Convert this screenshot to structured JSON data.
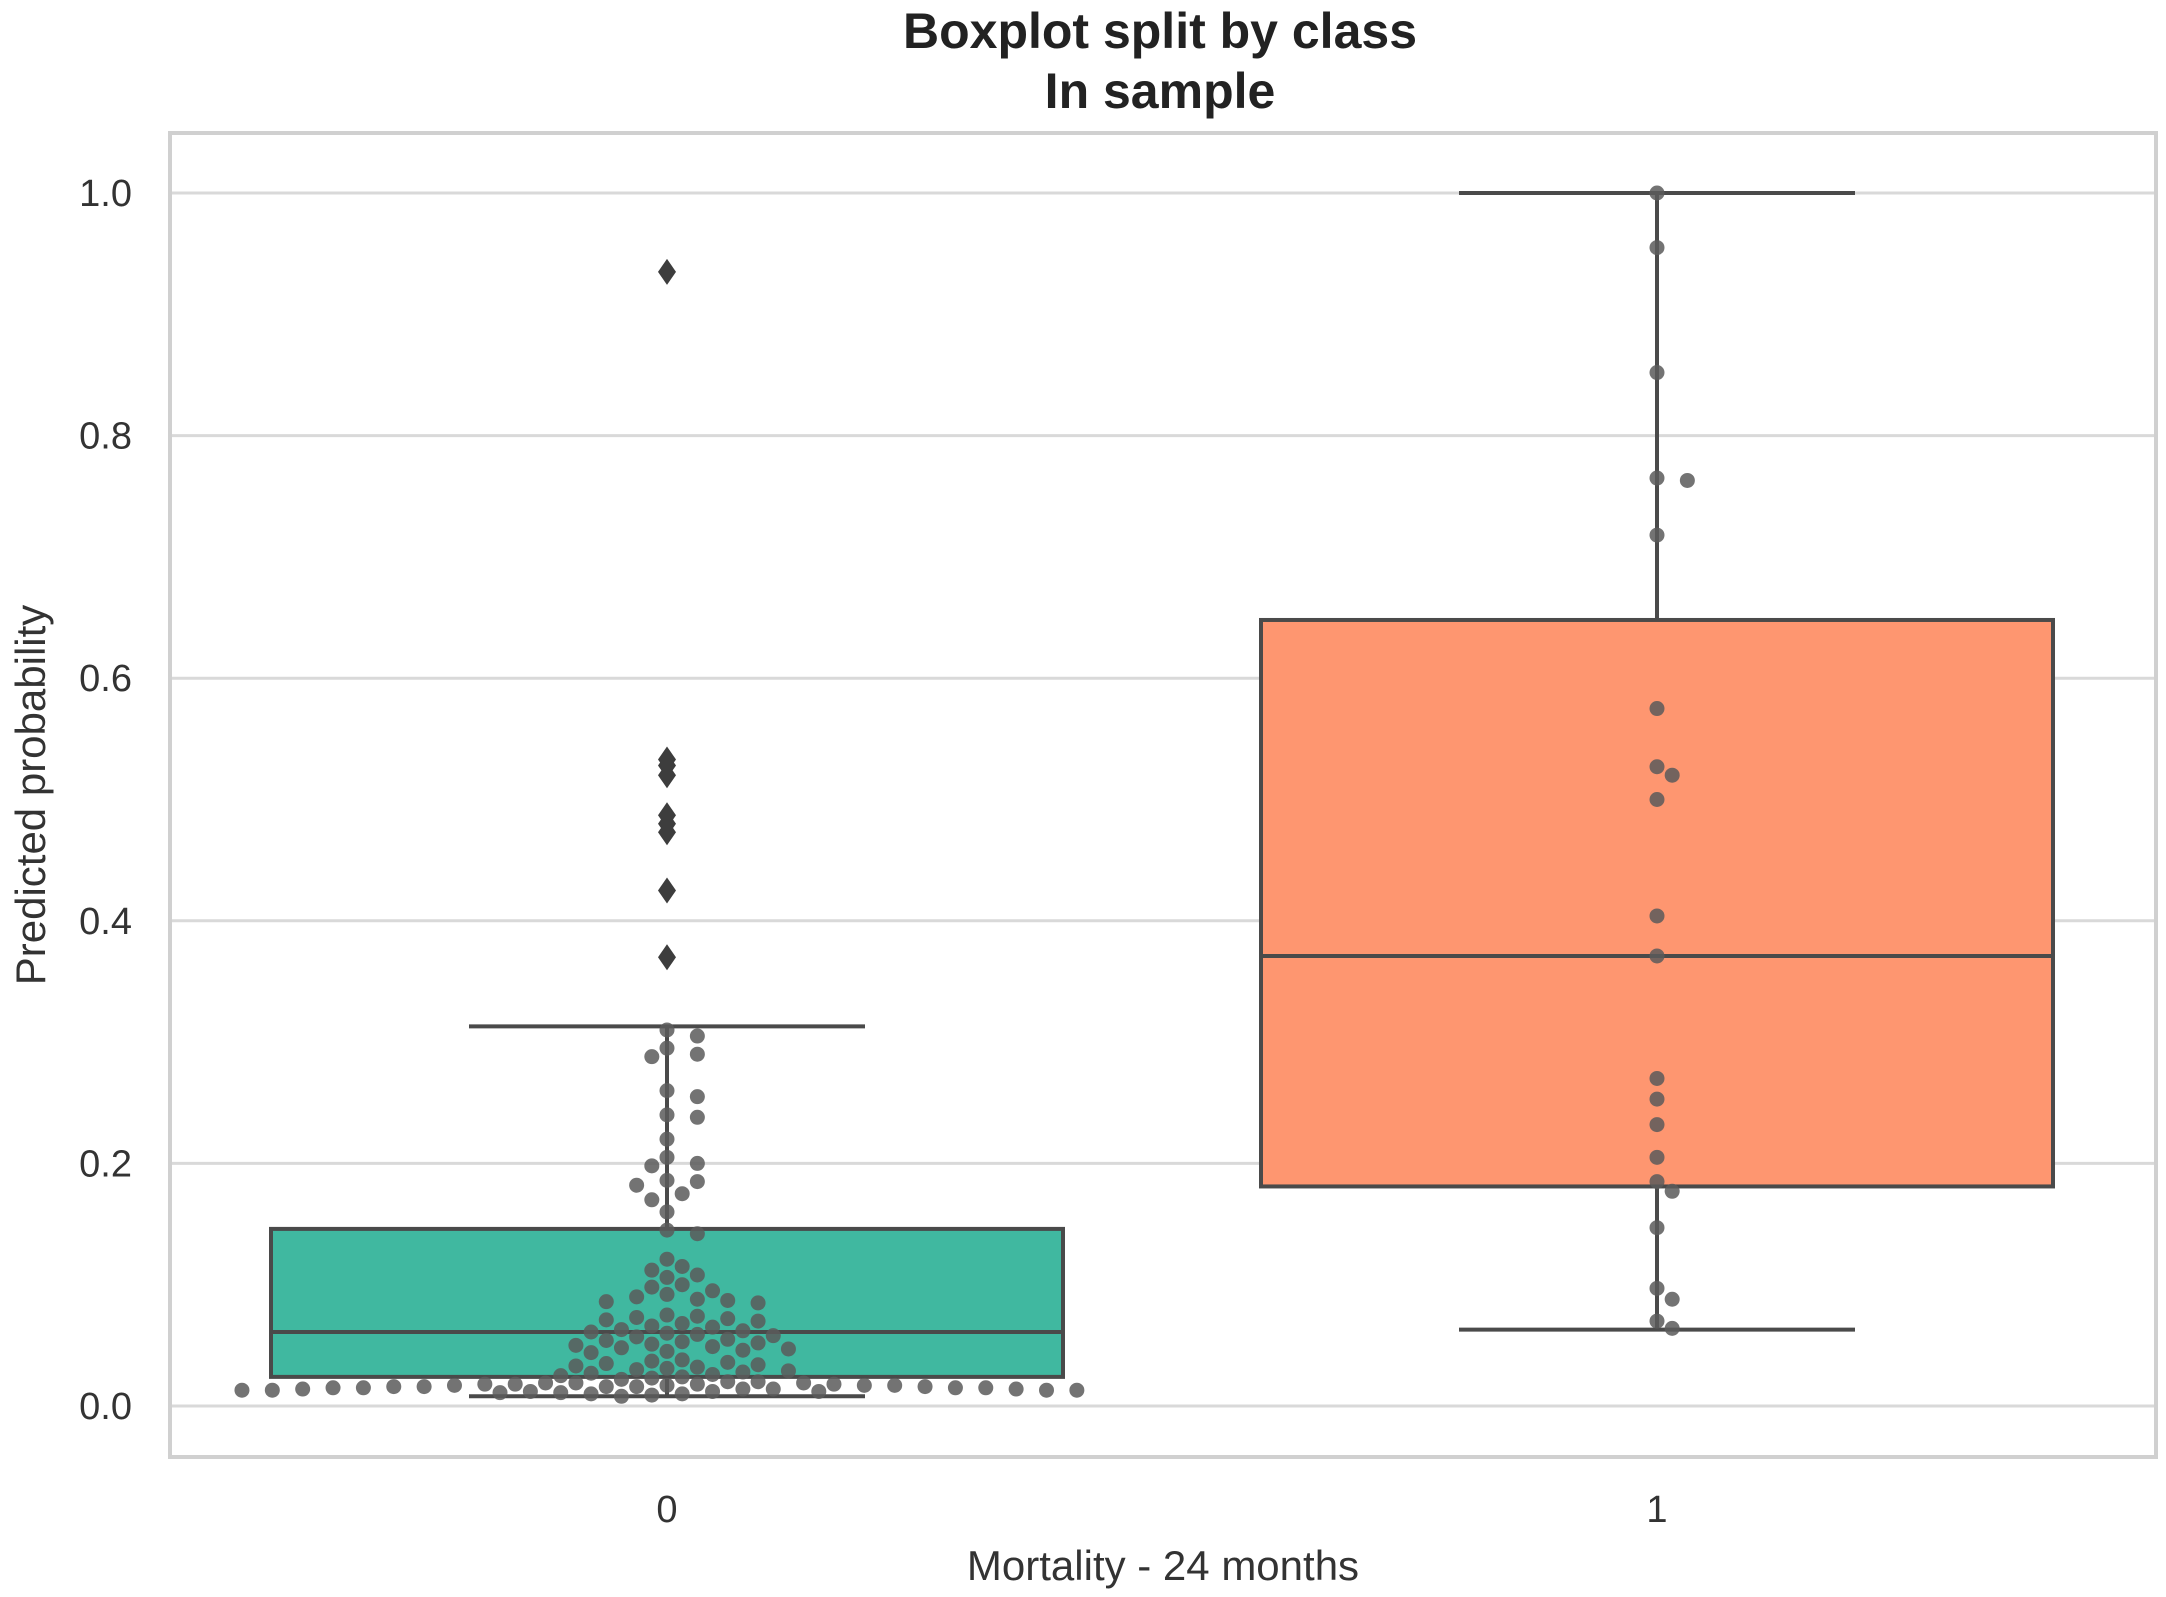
{
  "chart_data": {
    "type": "box",
    "title": "Boxplot split by class",
    "subtitle": "In sample",
    "xlabel": "Mortality - 24 months",
    "ylabel": "Predicted probability",
    "categories": [
      "0",
      "1"
    ],
    "ylim": [
      -0.04,
      1.05
    ],
    "yticks": [
      0.0,
      0.2,
      0.4,
      0.6,
      0.8,
      1.0
    ],
    "ytick_labels": [
      "0.0",
      "0.2",
      "0.4",
      "0.6",
      "0.8",
      "1.0"
    ],
    "grid": true,
    "colors": {
      "0": "#40b8a0",
      "1": "#fe9670",
      "outline": "#4a4a4a",
      "point": "#5a5a5a",
      "grid": "#d9d9d9"
    },
    "boxes": [
      {
        "category": "0",
        "whisker_low": 0.008,
        "q1": 0.024,
        "median": 0.061,
        "q3": 0.146,
        "whisker_high": 0.313,
        "outliers": [
          0.935,
          0.533,
          0.528,
          0.52,
          0.487,
          0.48,
          0.473,
          0.425,
          0.37
        ],
        "points": [
          0.31,
          0.305,
          0.295,
          0.29,
          0.288,
          0.26,
          0.255,
          0.24,
          0.238,
          0.22,
          0.205,
          0.2,
          0.198,
          0.186,
          0.185,
          0.182,
          0.175,
          0.17,
          0.16,
          0.145,
          0.142,
          0.121,
          0.115,
          0.112,
          0.108,
          0.106,
          0.1,
          0.098,
          0.095,
          0.092,
          0.09,
          0.088,
          0.087,
          0.086,
          0.085,
          0.075,
          0.074,
          0.073,
          0.072,
          0.071,
          0.07,
          0.068,
          0.066,
          0.065,
          0.063,
          0.062,
          0.061,
          0.06,
          0.059,
          0.058,
          0.057,
          0.055,
          0.054,
          0.053,
          0.052,
          0.051,
          0.05,
          0.049,
          0.048,
          0.047,
          0.046,
          0.045,
          0.044,
          0.038,
          0.037,
          0.036,
          0.035,
          0.034,
          0.033,
          0.032,
          0.031,
          0.03,
          0.029,
          0.028,
          0.027,
          0.026,
          0.025,
          0.024,
          0.023,
          0.022,
          0.02,
          0.02,
          0.019,
          0.019,
          0.019,
          0.018,
          0.018,
          0.018,
          0.018,
          0.017,
          0.017,
          0.017,
          0.017,
          0.016,
          0.016,
          0.016,
          0.016,
          0.016,
          0.015,
          0.015,
          0.015,
          0.015,
          0.014,
          0.014,
          0.014,
          0.014,
          0.013,
          0.013,
          0.013,
          0.013,
          0.012,
          0.012,
          0.012,
          0.011,
          0.011,
          0.01,
          0.01,
          0.009,
          0.008
        ]
      },
      {
        "category": "1",
        "whisker_low": 0.063,
        "q1": 0.181,
        "median": 0.371,
        "q3": 0.648,
        "whisker_high": 1.0,
        "outliers": [],
        "points": [
          1.0,
          0.955,
          0.852,
          0.765,
          0.763,
          0.718,
          0.575,
          0.527,
          0.52,
          0.5,
          0.404,
          0.371,
          0.27,
          0.253,
          0.232,
          0.205,
          0.185,
          0.177,
          0.147,
          0.097,
          0.088,
          0.07,
          0.064
        ]
      }
    ]
  }
}
